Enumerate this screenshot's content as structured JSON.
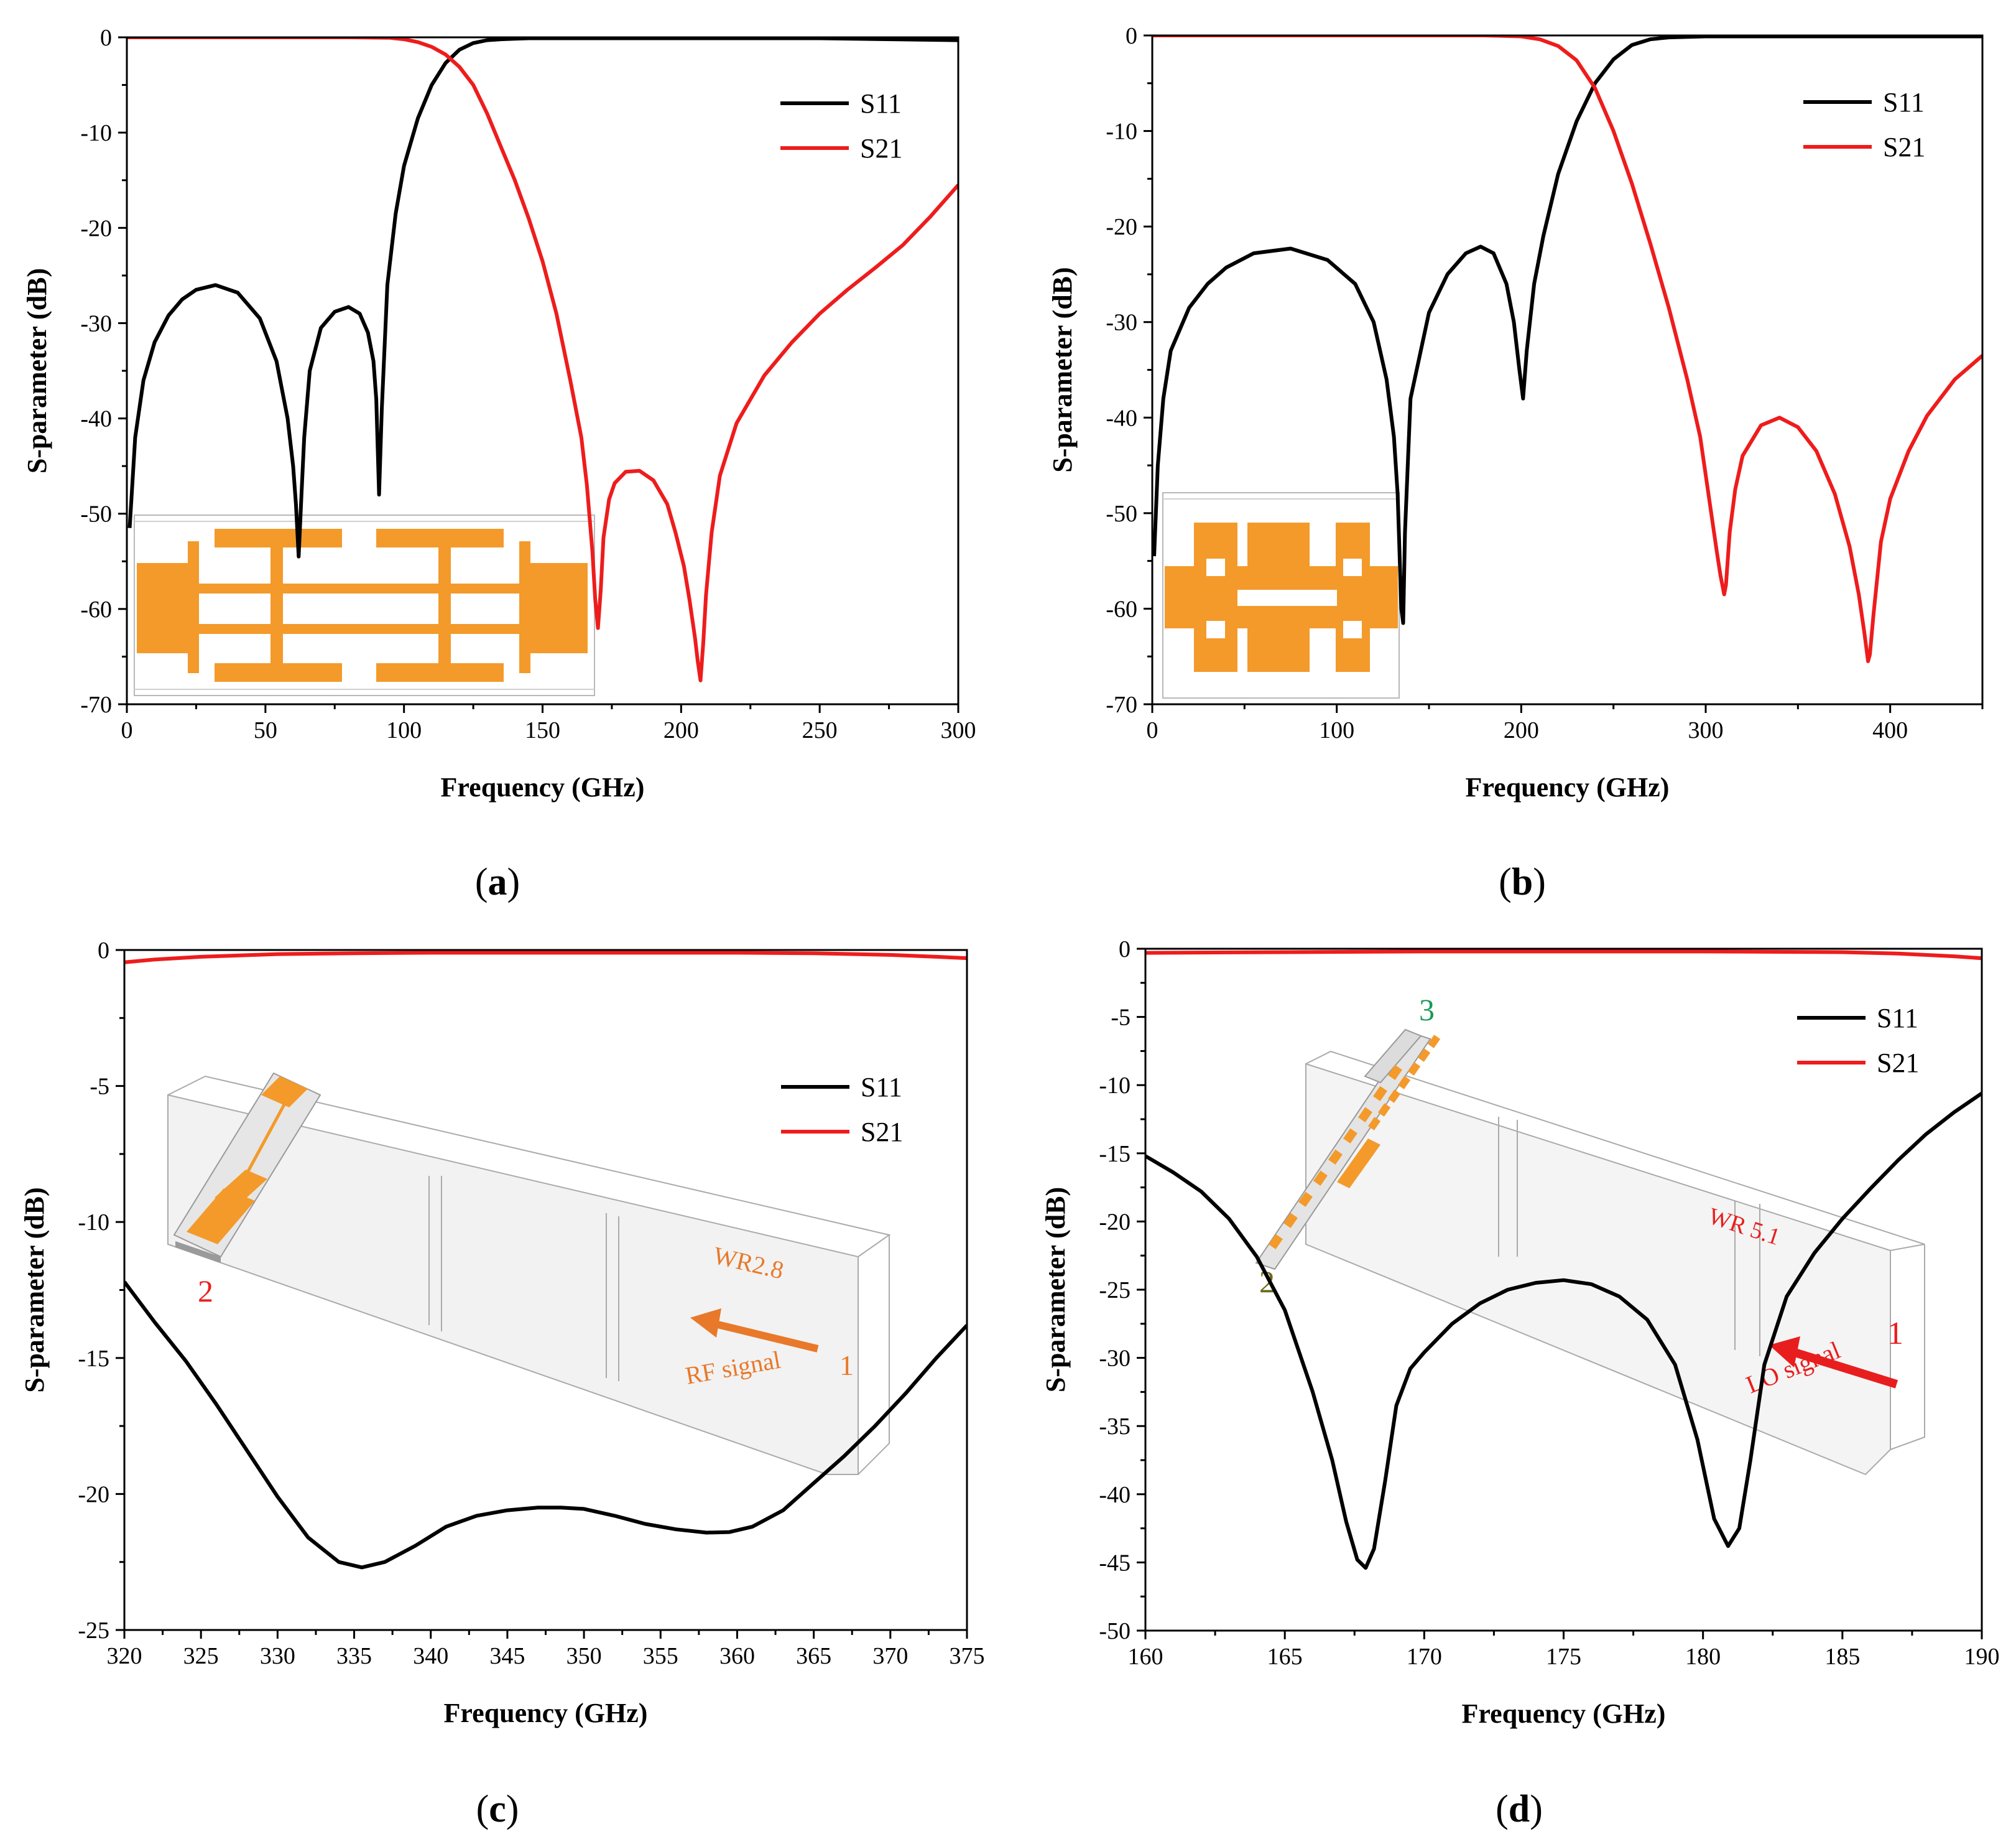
{
  "colors": {
    "s11": "#000000",
    "s21": "#ee1c1c",
    "copper": "#f39a2b",
    "wr_label_c": "#e8792a",
    "wr_label_d": "#e81e1e",
    "port3": "#1a9a56",
    "port2_d": "#6b6b1a"
  },
  "charts": [
    {
      "id": "a",
      "caption_open": "(",
      "caption_letter": "a",
      "caption_close": ")",
      "chart_data": {
        "type": "line",
        "title": "",
        "xlabel": "Frequency (GHz)",
        "ylabel": "S-parameter (dB)",
        "xlim": [
          0,
          300
        ],
        "ylim": [
          -70,
          0
        ],
        "xticks": [
          0,
          50,
          100,
          150,
          200,
          250,
          300
        ],
        "yticks": [
          0,
          -10,
          -20,
          -30,
          -40,
          -50,
          -60,
          -70
        ],
        "legend": {
          "position": "top-right",
          "entries": [
            "S11",
            "S21"
          ]
        },
        "series": [
          {
            "name": "S11",
            "color": "#000000",
            "x": [
              1,
              3,
              6,
              10,
              15,
              20,
              25,
              32,
              40,
              48,
              54,
              58,
              60,
              61,
              62,
              63,
              64,
              66,
              70,
              75,
              80,
              84,
              87,
              89,
              90,
              91,
              92,
              94,
              97,
              100,
              105,
              110,
              115,
              120,
              125,
              130,
              135,
              140,
              145,
              150,
              160,
              180,
              200,
              250,
              300
            ],
            "y": [
              -51.5,
              -42,
              -36,
              -32,
              -29.2,
              -27.5,
              -26.5,
              -26,
              -26.8,
              -29.5,
              -34,
              -40,
              -45,
              -49,
              -54.5,
              -48,
              -42,
              -35,
              -30.5,
              -28.8,
              -28.3,
              -29,
              -31,
              -34,
              -38,
              -48,
              -39,
              -26,
              -18.5,
              -13.5,
              -8.5,
              -5,
              -2.7,
              -1.3,
              -0.6,
              -0.3,
              -0.2,
              -0.15,
              -0.1,
              -0.1,
              -0.1,
              -0.1,
              -0.1,
              -0.1,
              -0.3
            ]
          },
          {
            "name": "S21",
            "color": "#ee1c1c",
            "x": [
              0,
              50,
              80,
              95,
              100,
              105,
              110,
              115,
              120,
              125,
              130,
              135,
              140,
              145,
              150,
              155,
              160,
              164,
              166,
              168,
              169,
              170,
              171,
              172,
              174,
              176,
              180,
              185,
              190,
              195,
              198,
              201,
              203,
              205,
              206,
              207,
              208,
              209,
              211,
              214,
              220,
              230,
              240,
              250,
              260,
              270,
              280,
              290,
              300
            ],
            "y": [
              0,
              0,
              0,
              -0.05,
              -0.2,
              -0.5,
              -1,
              -1.8,
              -3.1,
              -5,
              -8,
              -11.5,
              -15,
              -19,
              -23.5,
              -29,
              -36,
              -42,
              -47,
              -54,
              -59,
              -62,
              -58,
              -52.5,
              -48.5,
              -46.8,
              -45.6,
              -45.5,
              -46.5,
              -49,
              -52,
              -55.5,
              -59,
              -63,
              -65.5,
              -67.5,
              -63.5,
              -58.5,
              -52,
              -46,
              -40.5,
              -35.5,
              -32,
              -29,
              -26.5,
              -24.2,
              -21.8,
              -18.8,
              -15.5
            ]
          }
        ]
      }
    },
    {
      "id": "b",
      "caption_open": "(",
      "caption_letter": "b",
      "caption_close": ")",
      "chart_data": {
        "type": "line",
        "title": "",
        "xlabel": "Frequency (GHz)",
        "ylabel": "S-parameter (dB)",
        "xlim": [
          0,
          450
        ],
        "ylim": [
          -70,
          0
        ],
        "xticks": [
          0,
          100,
          200,
          300,
          400
        ],
        "yticks": [
          0,
          -10,
          -20,
          -30,
          -40,
          -50,
          -60,
          -70
        ],
        "legend": {
          "position": "top-right",
          "entries": [
            "S11",
            "S21"
          ]
        },
        "series": [
          {
            "name": "S11",
            "color": "#000000",
            "x": [
              1,
              3,
              6,
              10,
              20,
              30,
              40,
              55,
              75,
              95,
              110,
              120,
              127,
              131,
              133,
              135,
              136,
              137,
              140,
              150,
              160,
              170,
              178,
              185,
              192,
              196,
              199,
              201,
              203,
              207,
              212,
              220,
              230,
              240,
              250,
              260,
              270,
              280,
              300,
              350,
              400,
              450
            ],
            "y": [
              -54.5,
              -45,
              -38,
              -33,
              -28.5,
              -26,
              -24.3,
              -22.8,
              -22.3,
              -23.5,
              -26,
              -30,
              -36,
              -42,
              -48,
              -60,
              -61.5,
              -52,
              -38,
              -29,
              -25,
              -22.8,
              -22.1,
              -22.8,
              -26,
              -30,
              -35,
              -38,
              -33,
              -26,
              -21,
              -14.5,
              -9,
              -5,
              -2.5,
              -1,
              -0.4,
              -0.2,
              -0.1,
              -0.1,
              -0.1,
              -0.1
            ]
          },
          {
            "name": "S21",
            "color": "#ee1c1c",
            "x": [
              0,
              100,
              180,
              200,
              210,
              220,
              230,
              240,
              250,
              260,
              270,
              280,
              290,
              297,
              300,
              303,
              306,
              308,
              310,
              311,
              313,
              316,
              320,
              330,
              340,
              350,
              360,
              370,
              378,
              383,
              386,
              388,
              389,
              391,
              395,
              400,
              410,
              420,
              435,
              450
            ],
            "y": [
              0,
              0,
              0,
              -0.1,
              -0.4,
              -1.1,
              -2.6,
              -5.5,
              -10,
              -15.5,
              -21.8,
              -28.5,
              -36,
              -42,
              -46,
              -50,
              -54,
              -56.5,
              -58.5,
              -57.5,
              -52,
              -47.5,
              -44,
              -40.8,
              -40,
              -41,
              -43.5,
              -48,
              -53.5,
              -58.5,
              -62.5,
              -65.5,
              -64.8,
              -60.5,
              -53,
              -48.5,
              -43.5,
              -39.8,
              -36,
              -33.5
            ]
          }
        ]
      }
    },
    {
      "id": "c",
      "caption_open": "(",
      "caption_letter": "c",
      "caption_close": ")",
      "inset": {
        "label_wr": "WR2.8",
        "label_signal": "RF signal",
        "port_in": "1",
        "port_out": "2"
      },
      "chart_data": {
        "type": "line",
        "title": "",
        "xlabel": "Frequency (GHz)",
        "ylabel": "S-parameter (dB)",
        "xlim": [
          320,
          375
        ],
        "ylim": [
          -25,
          0
        ],
        "xticks": [
          320,
          325,
          330,
          335,
          340,
          345,
          350,
          355,
          360,
          365,
          370,
          375
        ],
        "yticks": [
          0,
          -5,
          -10,
          -15,
          -20,
          -25
        ],
        "legend": {
          "position": "middle-right",
          "entries": [
            "S11",
            "S21"
          ]
        },
        "series": [
          {
            "name": "S11",
            "color": "#000000",
            "x": [
              320,
              322,
              324,
              326,
              328,
              330,
              332,
              334,
              335.5,
              337,
              339,
              341,
              343,
              345,
              347,
              348.5,
              350,
              352,
              354,
              356,
              358,
              359.5,
              361,
              363,
              365,
              367,
              369,
              371,
              373,
              375
            ],
            "y": [
              -12.2,
              -13.7,
              -15.1,
              -16.7,
              -18.4,
              -20.1,
              -21.6,
              -22.5,
              -22.7,
              -22.5,
              -21.9,
              -21.2,
              -20.8,
              -20.6,
              -20.5,
              -20.5,
              -20.55,
              -20.8,
              -21.1,
              -21.3,
              -21.42,
              -21.4,
              -21.2,
              -20.6,
              -19.6,
              -18.6,
              -17.5,
              -16.3,
              -15,
              -13.8
            ]
          },
          {
            "name": "S21",
            "color": "#ee1c1c",
            "x": [
              320,
              322,
              325,
              330,
              335,
              340,
              350,
              360,
              365,
              370,
              373,
              375
            ],
            "y": [
              -0.45,
              -0.35,
              -0.25,
              -0.15,
              -0.12,
              -0.1,
              -0.1,
              -0.1,
              -0.12,
              -0.18,
              -0.25,
              -0.3
            ]
          }
        ]
      }
    },
    {
      "id": "d",
      "caption_open": "(",
      "caption_letter": "d",
      "caption_close": ")",
      "inset": {
        "label_wr": "WR 5.1",
        "label_signal": "LO signal",
        "port_in": "1",
        "port_2": "2",
        "port_3": "3"
      },
      "chart_data": {
        "type": "line",
        "title": "",
        "xlabel": "Frequency (GHz)",
        "ylabel": "S-parameter (dB)",
        "xlim": [
          160,
          190
        ],
        "ylim": [
          -50,
          0
        ],
        "xticks": [
          160,
          165,
          170,
          175,
          180,
          185,
          190
        ],
        "yticks": [
          0,
          -5,
          -10,
          -15,
          -20,
          -25,
          -30,
          -35,
          -40,
          -45,
          -50
        ],
        "legend": {
          "position": "top-right",
          "entries": [
            "S11",
            "S21"
          ]
        },
        "series": [
          {
            "name": "S11",
            "color": "#000000",
            "x": [
              160,
              161,
              162,
              163,
              164,
              165,
              166,
              166.7,
              167.2,
              167.6,
              167.9,
              168.2,
              168.6,
              169,
              169.5,
              170,
              171,
              172,
              173,
              174,
              175,
              176,
              177,
              178,
              179,
              179.8,
              180.4,
              180.9,
              181.3,
              181.7,
              182.2,
              183,
              184,
              185,
              186,
              187,
              188,
              189,
              190
            ],
            "y": [
              -15.2,
              -16.4,
              -17.8,
              -19.8,
              -22.6,
              -26.5,
              -32.5,
              -37.5,
              -42,
              -44.8,
              -45.4,
              -44,
              -39,
              -33.5,
              -30.8,
              -29.6,
              -27.5,
              -26,
              -25,
              -24.5,
              -24.3,
              -24.6,
              -25.5,
              -27.2,
              -30.5,
              -36,
              -41.8,
              -43.8,
              -42.5,
              -37.5,
              -30.5,
              -25.5,
              -22.3,
              -19.8,
              -17.6,
              -15.5,
              -13.6,
              -12,
              -10.6
            ]
          },
          {
            "name": "S21",
            "color": "#ee1c1c",
            "x": [
              160,
              165,
              170,
              175,
              180,
              185,
              187,
              189,
              190
            ],
            "y": [
              -0.3,
              -0.25,
              -0.2,
              -0.2,
              -0.2,
              -0.25,
              -0.35,
              -0.55,
              -0.7
            ]
          }
        ]
      }
    }
  ]
}
